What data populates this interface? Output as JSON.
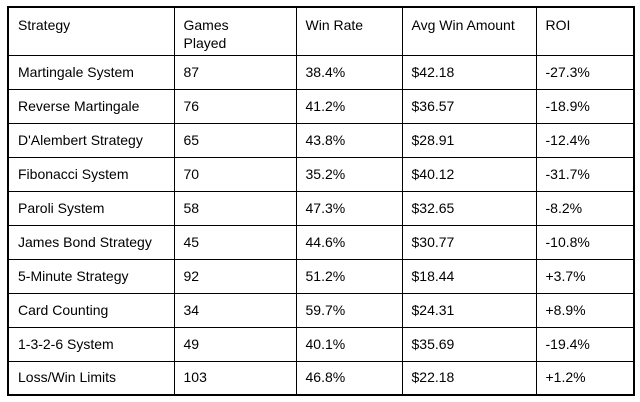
{
  "chart_data": {
    "type": "table",
    "title": "",
    "headers": [
      "Strategy",
      "Games\nPlayed",
      "Win Rate",
      "Avg Win Amount",
      "ROI"
    ],
    "rows": [
      [
        "Martingale System",
        "87",
        "38.4%",
        "$42.18",
        "-27.3%"
      ],
      [
        "Reverse Martingale",
        "76",
        "41.2%",
        "$36.57",
        "-18.9%"
      ],
      [
        "D'Alembert Strategy",
        "65",
        "43.8%",
        "$28.91",
        "-12.4%"
      ],
      [
        "Fibonacci System",
        "70",
        "35.2%",
        "$40.12",
        "-31.7%"
      ],
      [
        "Paroli System",
        "58",
        "47.3%",
        "$32.65",
        "-8.2%"
      ],
      [
        "James Bond Strategy",
        "45",
        "44.6%",
        "$30.77",
        "-10.8%"
      ],
      [
        "5-Minute Strategy",
        "92",
        "51.2%",
        "$18.44",
        "+3.7%"
      ],
      [
        "Card Counting",
        "34",
        "59.7%",
        "$24.31",
        "+8.9%"
      ],
      [
        "1-3-2-6 System",
        "49",
        "40.1%",
        "$35.69",
        "-19.4%"
      ],
      [
        "Loss/Win Limits",
        "103",
        "46.8%",
        "$22.18",
        "+1.2%"
      ]
    ],
    "colors": {
      "border": "#000000",
      "text": "#000000",
      "background": "#ffffff"
    }
  }
}
